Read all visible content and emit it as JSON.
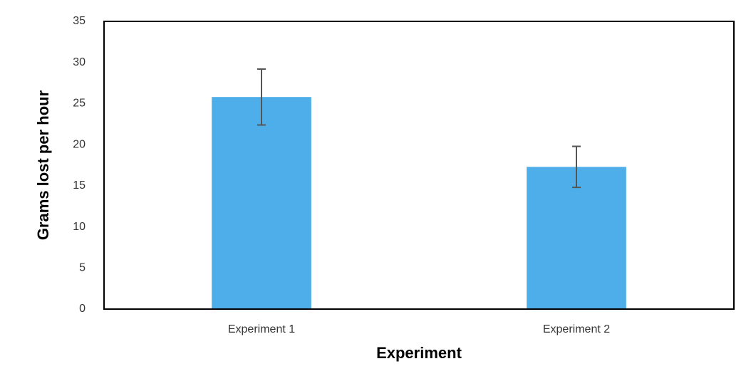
{
  "chart_data": {
    "type": "bar",
    "x_label": "Experiment",
    "y_label": "Grams lost per hour",
    "categories": [
      "Experiment 1",
      "Experiment 2"
    ],
    "values": [
      25.8,
      17.3
    ],
    "errors": [
      3.4,
      2.5
    ],
    "color": "#4eaeea",
    "ylim": [
      0,
      35
    ],
    "yticks": [
      0,
      5,
      10,
      15,
      20,
      25,
      30,
      35
    ],
    "grid": false
  }
}
